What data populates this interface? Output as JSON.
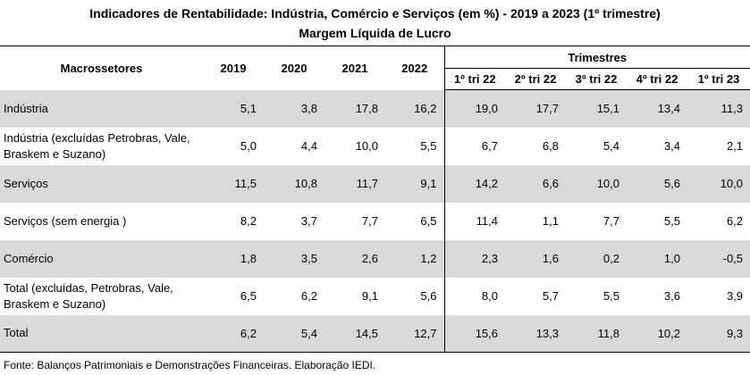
{
  "title": "Indicadores de Rentabilidade:  Indústria, Comércio e Serviços (em %) - 2019 a 2023 (1º trimestre)",
  "subtitle": "Margem Líquida de Lucro",
  "headers": {
    "sector": "Macrossetores",
    "years": [
      "2019",
      "2020",
      "2021",
      "2022"
    ],
    "quarters_group": "Trimestres",
    "quarters": [
      "1º tri 22",
      "2º tri 22",
      "3º tri 22",
      "4º tri 22",
      "1º tri 23"
    ]
  },
  "rows": [
    {
      "name": "Indústria",
      "values": [
        "5,1",
        "3,8",
        "17,8",
        "16,2",
        "19,0",
        "17,7",
        "15,1",
        "13,4",
        "11,3"
      ]
    },
    {
      "name": "Indústria  (excluídas Petrobras, Vale, Braskem e Suzano)",
      "values": [
        "5,0",
        "4,4",
        "10,0",
        "5,5",
        "6,7",
        "6,8",
        "5,4",
        "3,4",
        "2,1"
      ]
    },
    {
      "name": "Serviços",
      "values": [
        "11,5",
        "10,8",
        "11,7",
        "9,1",
        "14,2",
        "6,6",
        "10,0",
        "5,6",
        "10,0"
      ]
    },
    {
      "name": "Serviços (sem energia )",
      "values": [
        "8,2",
        "3,7",
        "7,7",
        "6,5",
        "11,4",
        "1,1",
        "7,7",
        "5,5",
        "6,2"
      ]
    },
    {
      "name": "Comércio",
      "values": [
        "1,8",
        "3,5",
        "2,6",
        "1,2",
        "2,3",
        "1,6",
        "0,2",
        "1,0",
        "-0,5"
      ]
    },
    {
      "name": "Total (excluídas, Petrobras, Vale, Braskem e Suzano)",
      "values": [
        "6,5",
        "6,2",
        "9,1",
        "5,6",
        "8,0",
        "5,7",
        "5,5",
        "3,6",
        "3,9"
      ]
    },
    {
      "name": "Total",
      "values": [
        "6,2",
        "5,4",
        "14,5",
        "12,7",
        "15,6",
        "13,3",
        "11,8",
        "10,2",
        "9,3"
      ]
    }
  ],
  "source": "Fonte: Balanços Patrimoniais e Demonstrações Financeiras. Elaboração IEDI.",
  "colors": {
    "shade": "#d9d9d9",
    "rule": "#000000"
  }
}
